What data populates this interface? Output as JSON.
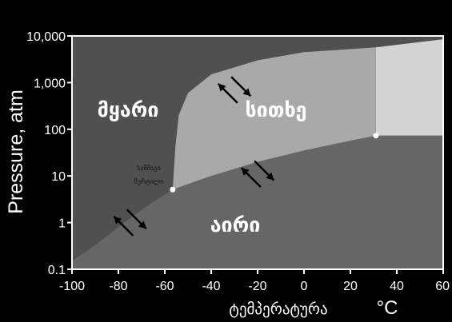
{
  "colors": {
    "background": "#000000",
    "solid_region": "#505050",
    "gas_region": "#666666",
    "liquid_region": "#a9a9a9",
    "supercritical_region": "#d3d3d3",
    "border": "#ffffff",
    "point": "#ffffff",
    "arrow": "#000000"
  },
  "chart_data": {
    "type": "phase-diagram",
    "y_scale": "log",
    "xlim": [
      -100,
      60
    ],
    "ylim": [
      0.1,
      10000
    ],
    "x_ticks": [
      "-100",
      "-80",
      "-60",
      "-40",
      "-20",
      "0",
      "20",
      "40",
      "60"
    ],
    "x_tick_values": [
      -100,
      -80,
      -60,
      -40,
      -20,
      0,
      20,
      40,
      60
    ],
    "y_ticks": [
      "10,000",
      "1,000",
      "100",
      "10",
      "1",
      "0.1"
    ],
    "y_tick_values": [
      10000,
      1000,
      100,
      10,
      1,
      0.1
    ],
    "ylabel": "Pressure, atm",
    "xlabel": "ტემპერატურა",
    "x_unit": "°C",
    "regions": [
      {
        "key": "solid",
        "label": "მყარი"
      },
      {
        "key": "liquid",
        "label": "სითხე"
      },
      {
        "key": "gas",
        "label": "აირი"
      }
    ],
    "triple_point": {
      "x": -56.6,
      "y": 5.1,
      "label_line1": "სამმაგი",
      "label_line2": "წერტილი"
    },
    "critical_point": {
      "x": 31,
      "y": 73
    },
    "sublimation_curve": [
      {
        "x": -100,
        "y": 0.15
      },
      {
        "x": -90,
        "y": 0.33
      },
      {
        "x": -80,
        "y": 0.8
      },
      {
        "x": -70,
        "y": 1.9
      },
      {
        "x": -60,
        "y": 4.0
      },
      {
        "x": -56.6,
        "y": 5.1
      }
    ],
    "vaporization_curve": [
      {
        "x": -56.6,
        "y": 5.1
      },
      {
        "x": -40,
        "y": 10
      },
      {
        "x": -20,
        "y": 20
      },
      {
        "x": 0,
        "y": 35
      },
      {
        "x": 20,
        "y": 57
      },
      {
        "x": 31,
        "y": 73
      },
      {
        "x": 60,
        "y": 73
      }
    ],
    "melting_curve": [
      {
        "x": -56.6,
        "y": 5.1
      },
      {
        "x": -55.5,
        "y": 40
      },
      {
        "x": -54,
        "y": 200
      },
      {
        "x": -50,
        "y": 600
      },
      {
        "x": -40,
        "y": 1500
      },
      {
        "x": -20,
        "y": 3000
      },
      {
        "x": 0,
        "y": 4500
      },
      {
        "x": 31,
        "y": 5700
      },
      {
        "x": 60,
        "y": 8500
      }
    ],
    "critical_isotherm_x": 31,
    "arrows": [
      {
        "name": "arrows-solid-liquid",
        "x": -30,
        "y": 700
      },
      {
        "name": "arrows-liquid-gas",
        "x": -20,
        "y": 11
      },
      {
        "name": "arrows-solid-gas",
        "x": -75,
        "y": 1.0
      }
    ]
  }
}
